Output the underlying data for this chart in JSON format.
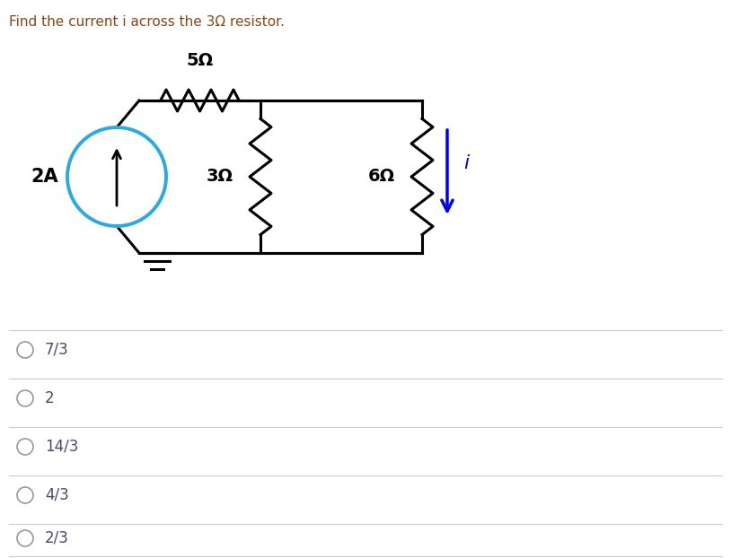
{
  "title": "Find the current i across the 3Ω resistor.",
  "title_color": "#8B4513",
  "title_fontsize": 11,
  "options": [
    "7/3",
    "2",
    "14/3",
    "4/3",
    "2/3"
  ],
  "option_fontsize": 12,
  "option_color": "#4a4a6a",
  "bg_color": "#ffffff",
  "circuit_color": "#000000",
  "source_color": "#29ABE2",
  "arrow_color": "#0000EE",
  "label_2A": "2A",
  "label_5ohm": "5Ω",
  "label_3ohm": "3Ω",
  "label_6ohm": "6Ω",
  "label_i": "i",
  "lw_circuit": 2.2,
  "lw_source": 2.8
}
